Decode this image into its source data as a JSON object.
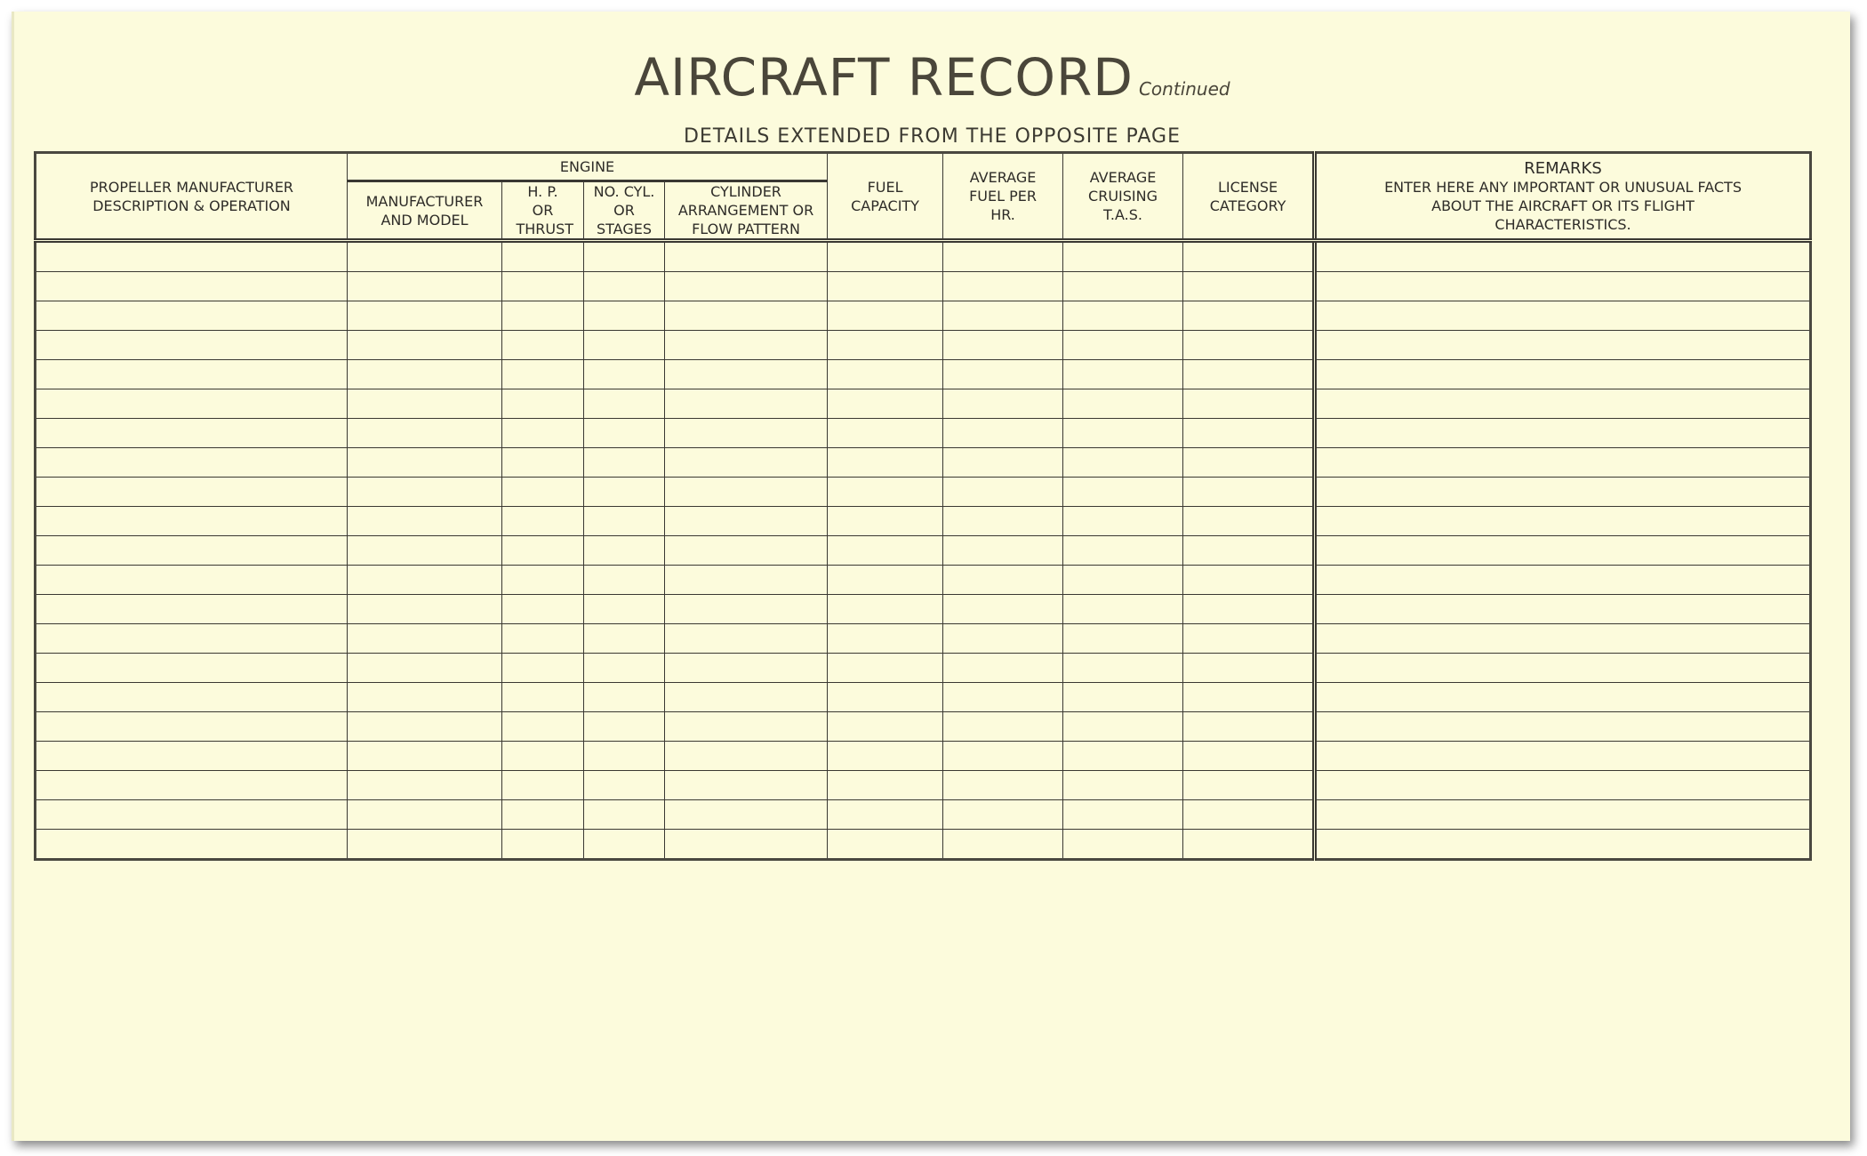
{
  "title": "AIRCRAFT RECORD",
  "title_suffix": "Continued",
  "subtitle": "DETAILS EXTENDED FROM THE OPPOSITE PAGE",
  "columns": {
    "propeller": "PROPELLER MANUFACTURER DESCRIPTION & OPERATION",
    "engine": "ENGINE",
    "engine_sub": {
      "manufacturer": "MANUFACTURER AND MODEL",
      "hp": "H. P. OR THRUST",
      "cyl": "NO. CYL. OR STAGES",
      "arrangement": "CYLINDER ARRANGEMENT OR FLOW PATTERN"
    },
    "fuel_capacity": "FUEL CAPACITY",
    "avg_fuel": "AVERAGE FUEL PER HR.",
    "avg_cruising": "AVERAGE CRUISING T.A.S.",
    "license": "LICENSE CATEGORY",
    "remarks_title": "REMARKS",
    "remarks_note": "ENTER HERE ANY IMPORTANT OR UNUSUAL FACTS ABOUT THE AIRCRAFT OR ITS FLIGHT CHARACTERISTICS."
  }
}
